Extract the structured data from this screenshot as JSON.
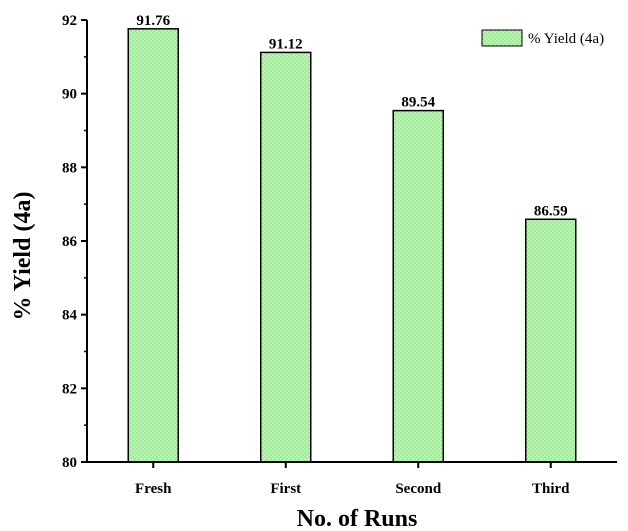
{
  "chart_data": {
    "type": "bar",
    "categories": [
      "Fresh",
      "First",
      "Second",
      "Third"
    ],
    "series": [
      {
        "name": "% Yield (4a)",
        "values": [
          91.76,
          91.12,
          89.54,
          86.59
        ]
      }
    ],
    "data_labels": [
      "91.76",
      "91.12",
      "89.54",
      "86.59"
    ],
    "xlabel": "No. of Runs",
    "ylabel": "% Yield (4a)",
    "ylim": [
      80,
      92
    ],
    "yticks": [
      "80",
      "82",
      "84",
      "86",
      "88",
      "90",
      "92"
    ],
    "grid": false,
    "legend_position": "top-right",
    "legend_label": "% Yield (4a)",
    "colors": {
      "bar_fill": "#b8f5b0",
      "bar_dot": "#6fcf6a",
      "axis": "#000000"
    }
  }
}
